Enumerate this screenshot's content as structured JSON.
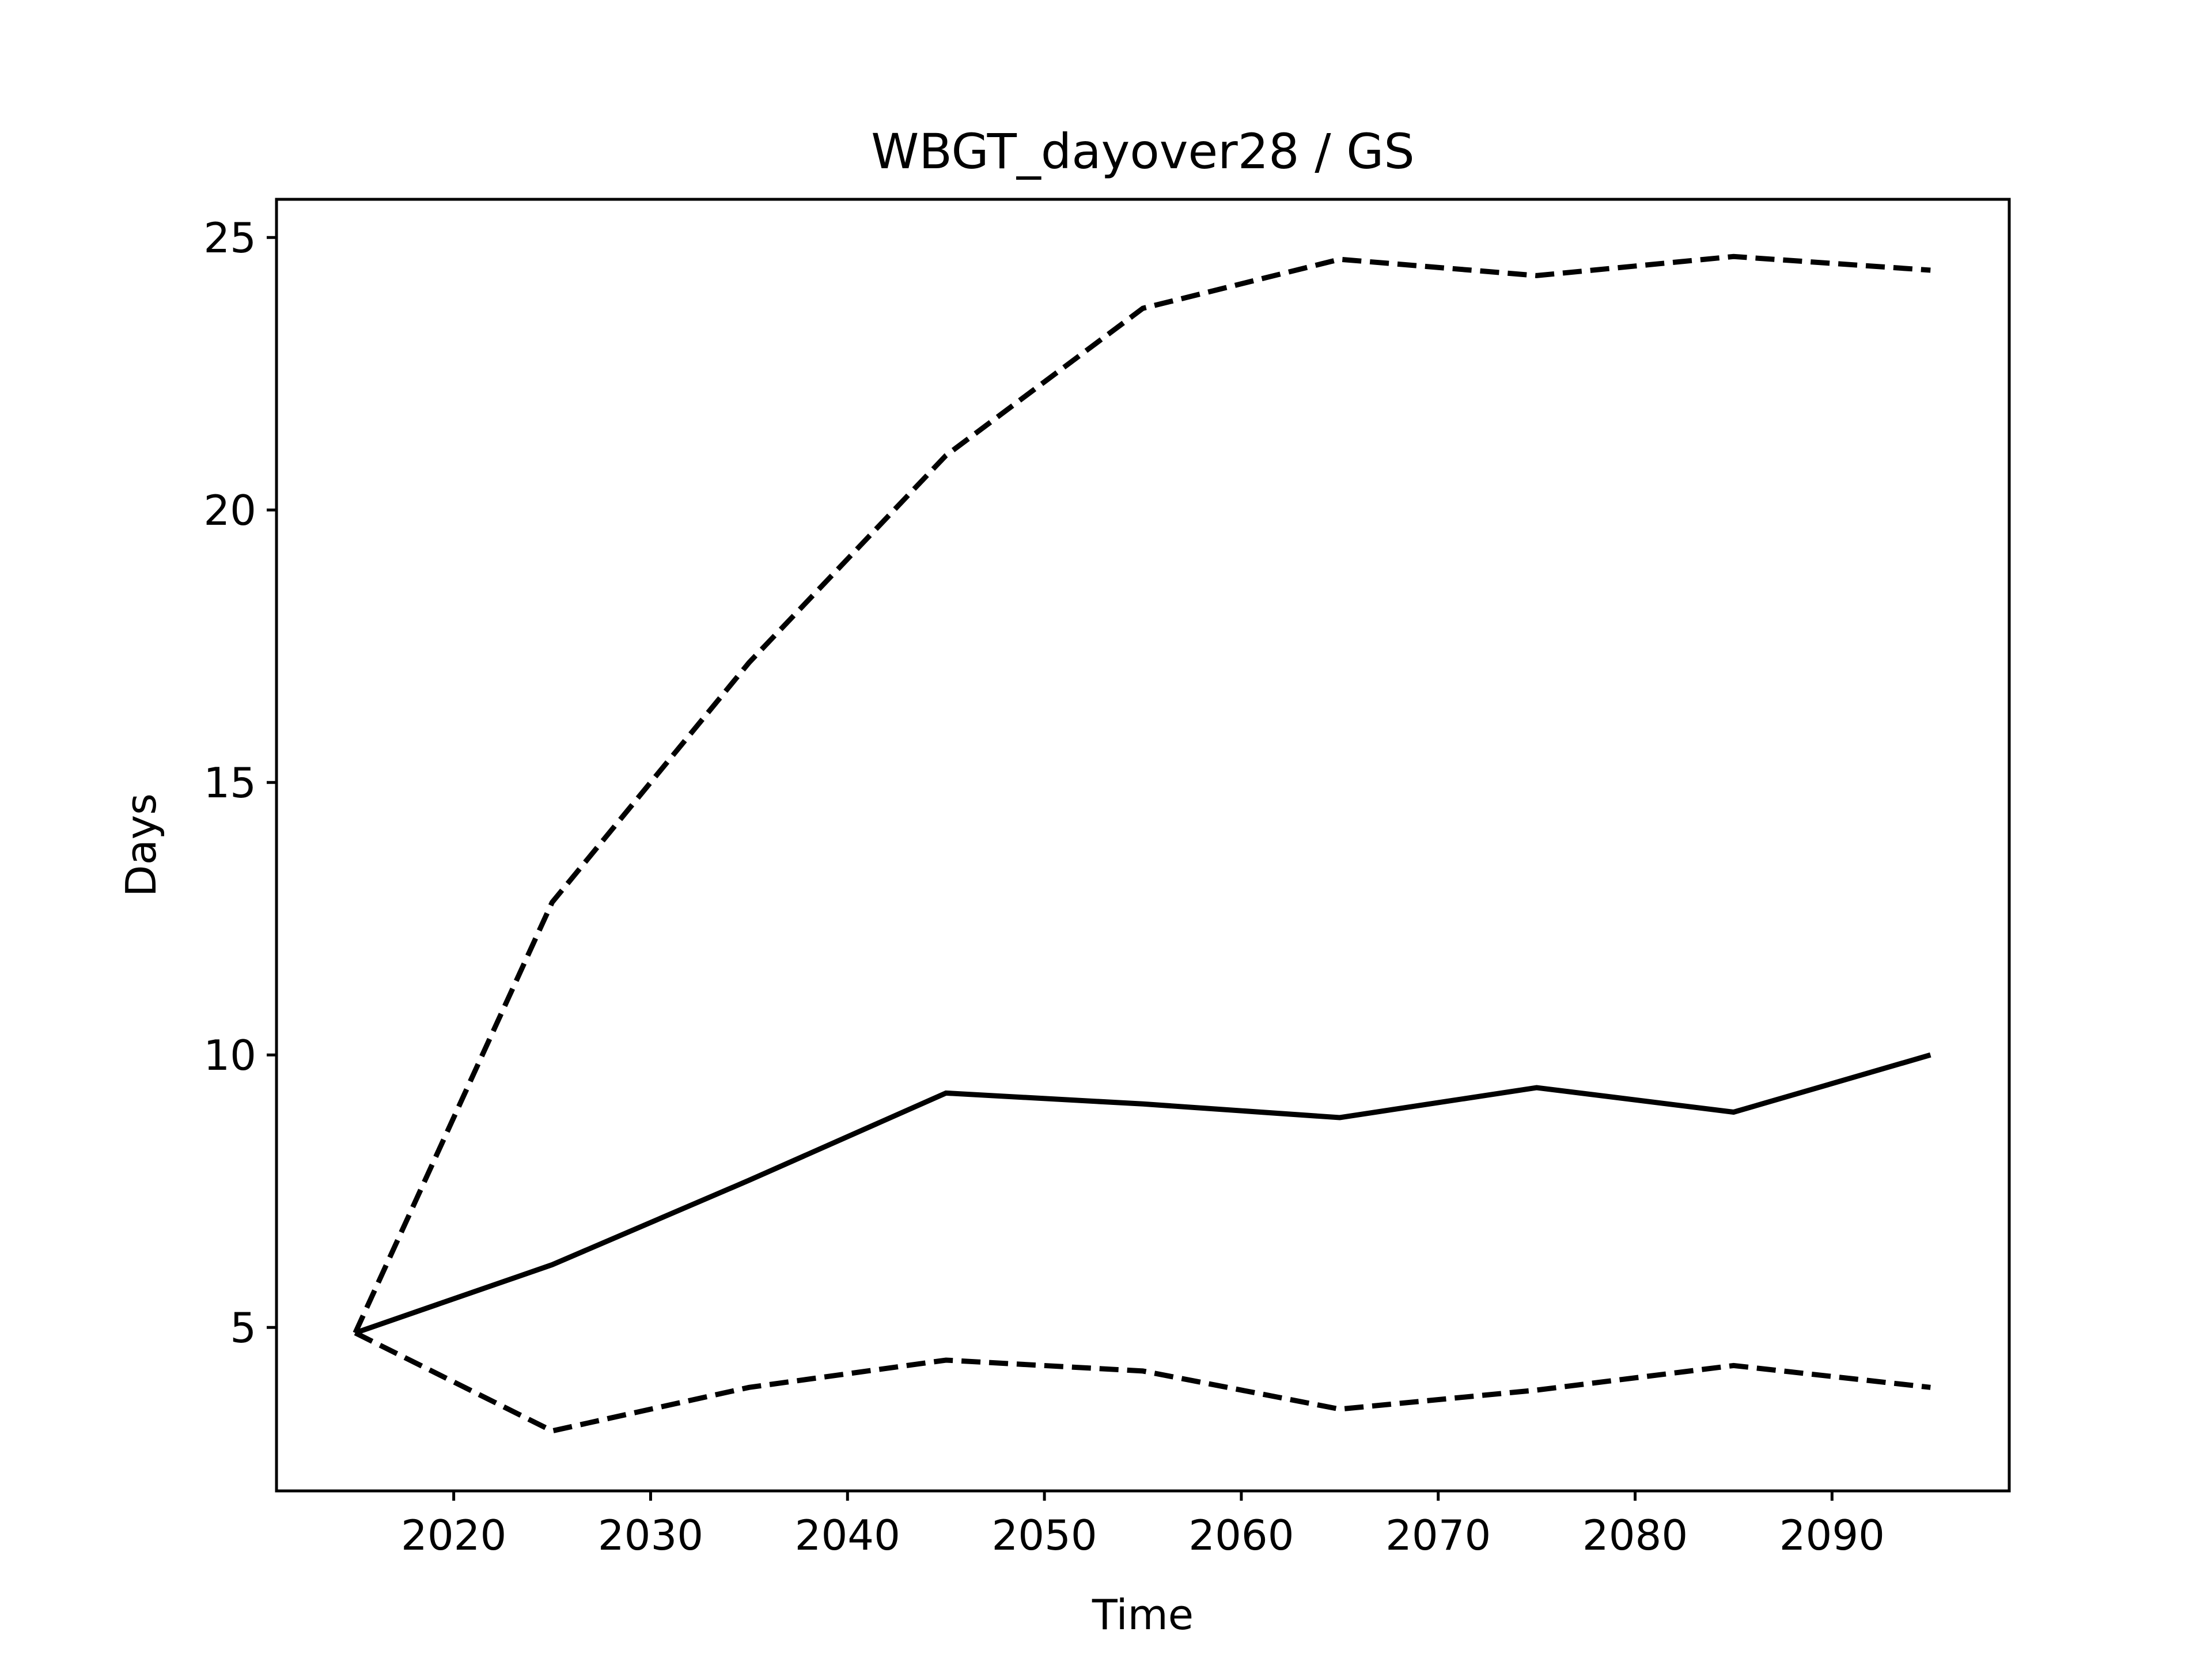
{
  "chart_data": {
    "type": "line",
    "title": "WBGT_dayover28 / GS",
    "xlabel": "Time",
    "ylabel": "Days",
    "xlim": [
      2011,
      2099
    ],
    "ylim": [
      2.0,
      25.7
    ],
    "xticks": [
      2020,
      2030,
      2040,
      2050,
      2060,
      2070,
      2080,
      2090
    ],
    "yticks": [
      5,
      10,
      15,
      20,
      25
    ],
    "grid": false,
    "x": [
      2015,
      2025,
      2035,
      2045,
      2055,
      2065,
      2075,
      2085,
      2095
    ],
    "series": [
      {
        "values": [
          4.9,
          6.15,
          7.7,
          9.3,
          9.1,
          8.85,
          9.4,
          8.95,
          10.0
        ],
        "style": "solid",
        "color": "#000000"
      },
      {
        "values": [
          4.9,
          12.8,
          17.2,
          21.0,
          23.7,
          24.6,
          24.3,
          24.65,
          24.4
        ],
        "style": "dashed",
        "color": "#000000"
      },
      {
        "values": [
          4.9,
          3.1,
          3.9,
          4.4,
          4.2,
          3.5,
          3.85,
          4.3,
          3.9
        ],
        "style": "dashed",
        "color": "#000000"
      }
    ]
  }
}
